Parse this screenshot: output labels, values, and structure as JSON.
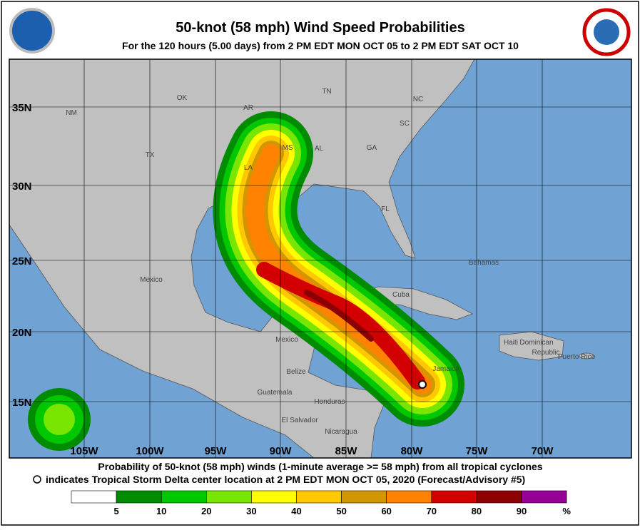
{
  "header": {
    "title": "50-knot (58 mph) Wind Speed Probabilities",
    "subtitle": "For the 120 hours (5.00 days) from 2 PM EDT MON OCT 05 to 2 PM EDT SAT OCT 10"
  },
  "map": {
    "lat_labels": [
      "35N",
      "30N",
      "25N",
      "20N",
      "15N"
    ],
    "lon_labels": [
      "105W",
      "100W",
      "95W",
      "90W",
      "85W",
      "80W",
      "75W",
      "70W"
    ],
    "places": [
      "NM",
      "OK",
      "AR",
      "TN",
      "NC",
      "SC",
      "TX",
      "MS",
      "AL",
      "GA",
      "LA",
      "FL",
      "Mexico",
      "Bahamas",
      "Cuba",
      "Haiti",
      "Dominican",
      "Republic",
      "Puerto Rico",
      "Jamaica",
      "Mexico",
      "Belize",
      "Guatemala",
      "Honduras",
      "El Salvador",
      "Nicaragua"
    ]
  },
  "footer": {
    "lines": [
      "Probability of 50-knot (58 mph) winds (1-minute average >= 58 mph) from all tropical cyclones",
      "indicates Tropical Storm Delta center location at 2 PM EDT MON OCT 05, 2020 (Forecast/Advisory #5)"
    ]
  },
  "legend": {
    "labels": [
      5,
      10,
      20,
      30,
      40,
      50,
      60,
      70,
      80,
      90
    ],
    "unit": "%",
    "colors": [
      "#ffffff",
      "#008c00",
      "#00c800",
      "#78e600",
      "#ffff00",
      "#ffc800",
      "#d29600",
      "#ff8200",
      "#d20000",
      "#8b0000",
      "#960096"
    ]
  }
}
